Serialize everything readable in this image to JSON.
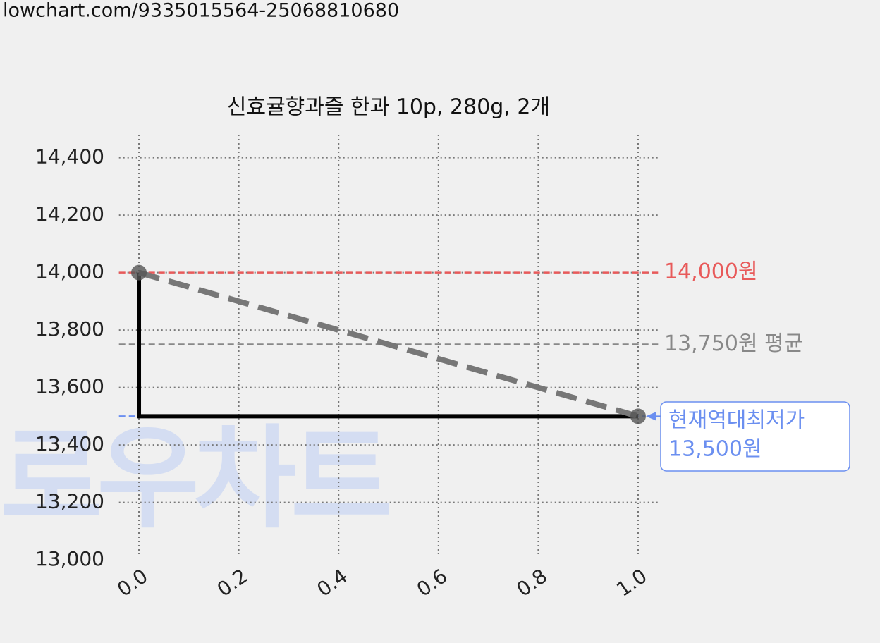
{
  "url": "lowchart.com/9335015564-25068810680",
  "chart_data": {
    "type": "line",
    "title": "신효귤향과즐 한과 10p, 280g, 2개",
    "watermark": "로우차트",
    "x": [
      0,
      1
    ],
    "series": [
      {
        "values": [
          14000,
          13500
        ],
        "color": "#000000",
        "drawstyle": "steps-pre",
        "linestyle": "solid"
      },
      {
        "values": [
          14000,
          13500
        ],
        "color": "#777777",
        "drawstyle": "default",
        "linestyle": "dashed",
        "marker": true
      }
    ],
    "xlim": [
      -0.04,
      1.04
    ],
    "xticks": [
      {
        "value": 0,
        "label": "0.0"
      },
      {
        "value": 0.2,
        "label": "0.2"
      },
      {
        "value": 0.4,
        "label": "0.4"
      },
      {
        "value": 0.6,
        "label": "0.6"
      },
      {
        "value": 0.8,
        "label": "0.8"
      },
      {
        "value": 1,
        "label": "1.0"
      }
    ],
    "ylim": [
      13020,
      14480
    ],
    "yticks": [
      {
        "value": 13000,
        "label": "13,000"
      },
      {
        "value": 13200,
        "label": "13,200"
      },
      {
        "value": 13400,
        "label": "13,400"
      },
      {
        "value": 13600,
        "label": "13,600"
      },
      {
        "value": 13800,
        "label": "13,800"
      },
      {
        "value": 14000,
        "label": "14,000"
      },
      {
        "value": 14200,
        "label": "14,200"
      },
      {
        "value": 14400,
        "label": "14,400"
      }
    ],
    "grid": true,
    "reference_lines": [
      {
        "value": 14000,
        "label": "14,000원",
        "color": "#e85a5a"
      },
      {
        "value": 13750,
        "label": "13,750원 평균",
        "color": "#888888"
      },
      {
        "value": 13500,
        "color": "#6b8ff0"
      }
    ],
    "annotation": {
      "text": "현재역대최저가",
      "value": 13500,
      "label": "13,500원",
      "color": "#6b8ff0"
    }
  }
}
